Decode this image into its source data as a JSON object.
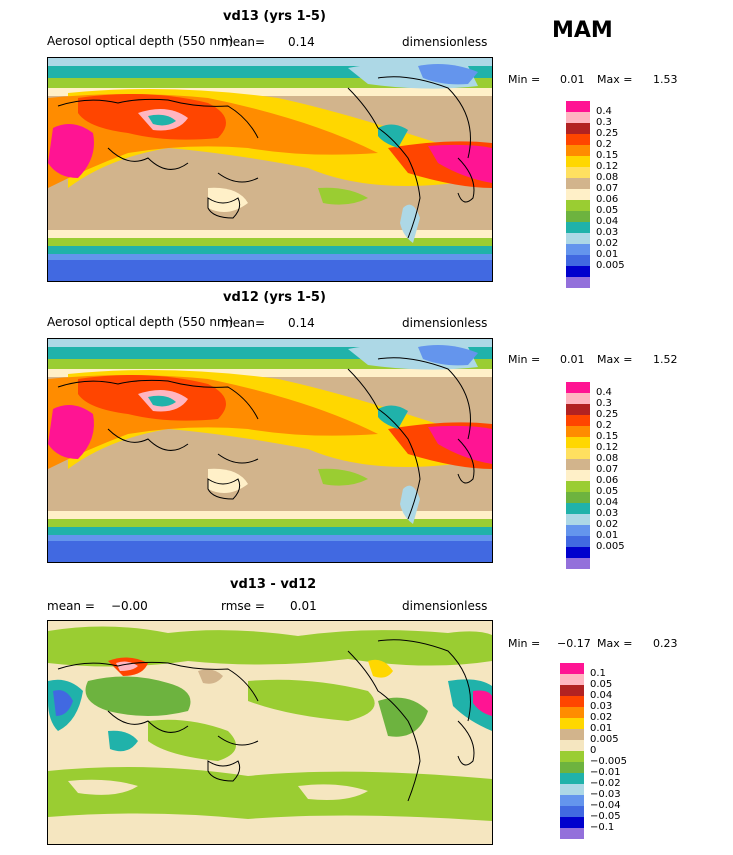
{
  "season": "MAM",
  "panels": [
    {
      "title": "vd13 (yrs 1-5)",
      "left_label": "Aerosol optical depth (550 nm)",
      "mean_label": "mean=",
      "mean_value": "0.14",
      "units": "dimensionless",
      "min_label": "Min =",
      "min_value": "0.01",
      "max_label": "Max =",
      "max_value": "1.53"
    },
    {
      "title": "vd12 (yrs 1-5)",
      "left_label": "Aerosol optical depth (550 nm)",
      "mean_label": "mean=",
      "mean_value": "0.14",
      "units": "dimensionless",
      "min_label": "Min =",
      "min_value": "0.01",
      "max_label": "Max =",
      "max_value": "1.52"
    },
    {
      "title": "vd13 - vd12",
      "left_label": "mean =",
      "left_value": "−0.00",
      "rmse_label": "rmse =",
      "rmse_value": "0.01",
      "units": "dimensionless",
      "min_label": "Min =",
      "min_value": "−0.17",
      "max_label": "Max =",
      "max_value": "0.23"
    }
  ],
  "legend_aod": {
    "colors": [
      "#ff1493",
      "#ffb6c1",
      "#b22222",
      "#ff4500",
      "#ff8c00",
      "#ffd700",
      "#ffe060",
      "#d2b48c",
      "#fff0c8",
      "#9acd32",
      "#6db33f",
      "#20b2aa",
      "#add8e6",
      "#6495ed",
      "#4169e1",
      "#0000cd",
      "#9370db"
    ],
    "labels": [
      "0.4",
      "0.3",
      "0.25",
      "0.2",
      "0.15",
      "0.12",
      "0.08",
      "0.07",
      "0.06",
      "0.05",
      "0.04",
      "0.03",
      "0.02",
      "0.01",
      "0.005"
    ]
  },
  "legend_diff": {
    "colors": [
      "#ff1493",
      "#ffb6c1",
      "#b22222",
      "#ff4500",
      "#ff8c00",
      "#ffd700",
      "#d2b48c",
      "#f5e6c0",
      "#9acd32",
      "#6db33f",
      "#20b2aa",
      "#add8e6",
      "#6495ed",
      "#4169e1",
      "#0000cd",
      "#9370db"
    ],
    "labels": [
      "0.1",
      "0.05",
      "0.04",
      "0.03",
      "0.02",
      "0.01",
      "0.005",
      "0",
      "−0.005",
      "−0.01",
      "−0.02",
      "−0.03",
      "−0.04",
      "−0.05",
      "−0.1"
    ]
  }
}
